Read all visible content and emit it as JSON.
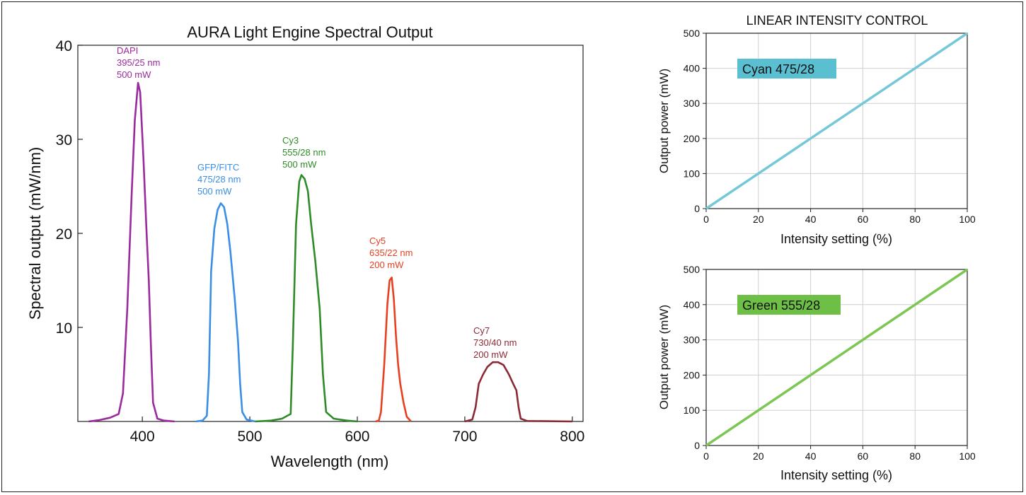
{
  "colors": {
    "dapi": "#9b2a9e",
    "gfp": "#3a8ee6",
    "cy3": "#2e8b27",
    "cy5": "#e8401e",
    "cy7": "#8b2a35",
    "cyan_line": "#74c8d8",
    "cyan_box": "#5bbfd2",
    "green_line": "#7cc653",
    "green_box": "#6dbf45"
  },
  "chart_data": [
    {
      "type": "line",
      "title": "AURA Light Engine Spectral Output",
      "xlabel": "Wavelength (nm)",
      "ylabel": "Spectral output (mW/nm)",
      "xlim": [
        340,
        810
      ],
      "ylim": [
        0,
        40
      ],
      "xticks": [
        400,
        500,
        600,
        700,
        800
      ],
      "yticks": [
        10,
        20,
        30,
        40
      ],
      "grid": false,
      "series": [
        {
          "name": "DAPI",
          "annotation": [
            "DAPI",
            "395/25 nm",
            "500 mW"
          ],
          "color_key": "dapi",
          "points": [
            [
              350,
              0
            ],
            [
              360,
              0.15
            ],
            [
              370,
              0.4
            ],
            [
              378,
              0.8
            ],
            [
              382,
              3
            ],
            [
              386,
              12
            ],
            [
              390,
              24
            ],
            [
              393,
              32
            ],
            [
              396,
              36
            ],
            [
              398,
              35
            ],
            [
              401,
              28
            ],
            [
              404,
              20
            ],
            [
              406,
              15
            ],
            [
              408,
              8
            ],
            [
              410,
              2
            ],
            [
              414,
              0.3
            ],
            [
              420,
              0.1
            ],
            [
              430,
              0
            ]
          ]
        },
        {
          "name": "GFP/FITC",
          "annotation": [
            "GFP/FITC",
            "475/28 nm",
            "500 mW"
          ],
          "color_key": "gfp",
          "points": [
            [
              450,
              0
            ],
            [
              456,
              0.1
            ],
            [
              460,
              0.6
            ],
            [
              462,
              5
            ],
            [
              464,
              16
            ],
            [
              467,
              20.5
            ],
            [
              470,
              22.5
            ],
            [
              473,
              23.2
            ],
            [
              476,
              22.8
            ],
            [
              479,
              21
            ],
            [
              482,
              18
            ],
            [
              486,
              13
            ],
            [
              489,
              8.5
            ],
            [
              491,
              4
            ],
            [
              493,
              1
            ],
            [
              497,
              0.2
            ],
            [
              505,
              0
            ]
          ]
        },
        {
          "name": "Cy3",
          "annotation": [
            "Cy3",
            "555/28 nm",
            "500 mW"
          ],
          "color_key": "cy3",
          "points": [
            [
              505,
              0
            ],
            [
              520,
              0.1
            ],
            [
              530,
              0.3
            ],
            [
              538,
              0.8
            ],
            [
              540,
              8
            ],
            [
              543,
              21
            ],
            [
              546,
              25.5
            ],
            [
              548,
              26.2
            ],
            [
              551,
              25.8
            ],
            [
              554,
              24.5
            ],
            [
              557,
              21
            ],
            [
              561,
              17
            ],
            [
              565,
              12
            ],
            [
              568,
              5
            ],
            [
              571,
              1
            ],
            [
              578,
              0.3
            ],
            [
              590,
              0.1
            ],
            [
              600,
              0
            ]
          ]
        },
        {
          "name": "Cy5",
          "annotation": [
            "Cy5",
            "635/22 nm",
            "200 mW"
          ],
          "color_key": "cy5",
          "points": [
            [
              617,
              0
            ],
            [
              620,
              0.1
            ],
            [
              622,
              1
            ],
            [
              625,
              6
            ],
            [
              628,
              12.5
            ],
            [
              630,
              15
            ],
            [
              632,
              15.3
            ],
            [
              634,
              13
            ],
            [
              636,
              9
            ],
            [
              638,
              6
            ],
            [
              640,
              4
            ],
            [
              643,
              2
            ],
            [
              646,
              0.5
            ],
            [
              650,
              0
            ]
          ]
        },
        {
          "name": "Cy7",
          "annotation": [
            "Cy7",
            "730/40 nm",
            "200 mW"
          ],
          "color_key": "cy7",
          "points": [
            [
              700,
              0
            ],
            [
              707,
              0.2
            ],
            [
              710,
              1.5
            ],
            [
              713,
              4
            ],
            [
              717,
              5
            ],
            [
              721,
              5.8
            ],
            [
              726,
              6.3
            ],
            [
              731,
              6.3
            ],
            [
              736,
              6
            ],
            [
              741,
              5
            ],
            [
              745,
              4
            ],
            [
              748,
              3.3
            ],
            [
              750,
              1.5
            ],
            [
              752,
              0.3
            ],
            [
              758,
              0.05
            ],
            [
              800,
              0
            ]
          ]
        }
      ]
    },
    {
      "type": "line",
      "title": "LINEAR INTENSITY CONTROL",
      "xlabel": "Intensity setting (%)",
      "ylabel": "Output power (mW)",
      "xlim": [
        0,
        100
      ],
      "ylim": [
        0,
        500
      ],
      "xticks": [
        0,
        20,
        40,
        60,
        80,
        100
      ],
      "yticks": [
        0,
        100,
        200,
        300,
        400,
        500
      ],
      "grid": true,
      "series": [
        {
          "name": "Cyan 475/28",
          "color_key": "cyan_line",
          "box_key": "cyan_box",
          "x": [
            0,
            100
          ],
          "y": [
            0,
            500
          ]
        }
      ]
    },
    {
      "type": "line",
      "title": "",
      "xlabel": "Intensity setting (%)",
      "ylabel": "Output power (mW)",
      "xlim": [
        0,
        100
      ],
      "ylim": [
        0,
        500
      ],
      "xticks": [
        0,
        20,
        40,
        60,
        80,
        100
      ],
      "yticks": [
        0,
        100,
        200,
        300,
        400,
        500
      ],
      "grid": true,
      "series": [
        {
          "name": "Green 555/28",
          "color_key": "green_line",
          "box_key": "green_box",
          "x": [
            0,
            100
          ],
          "y": [
            0,
            500
          ]
        }
      ]
    }
  ]
}
